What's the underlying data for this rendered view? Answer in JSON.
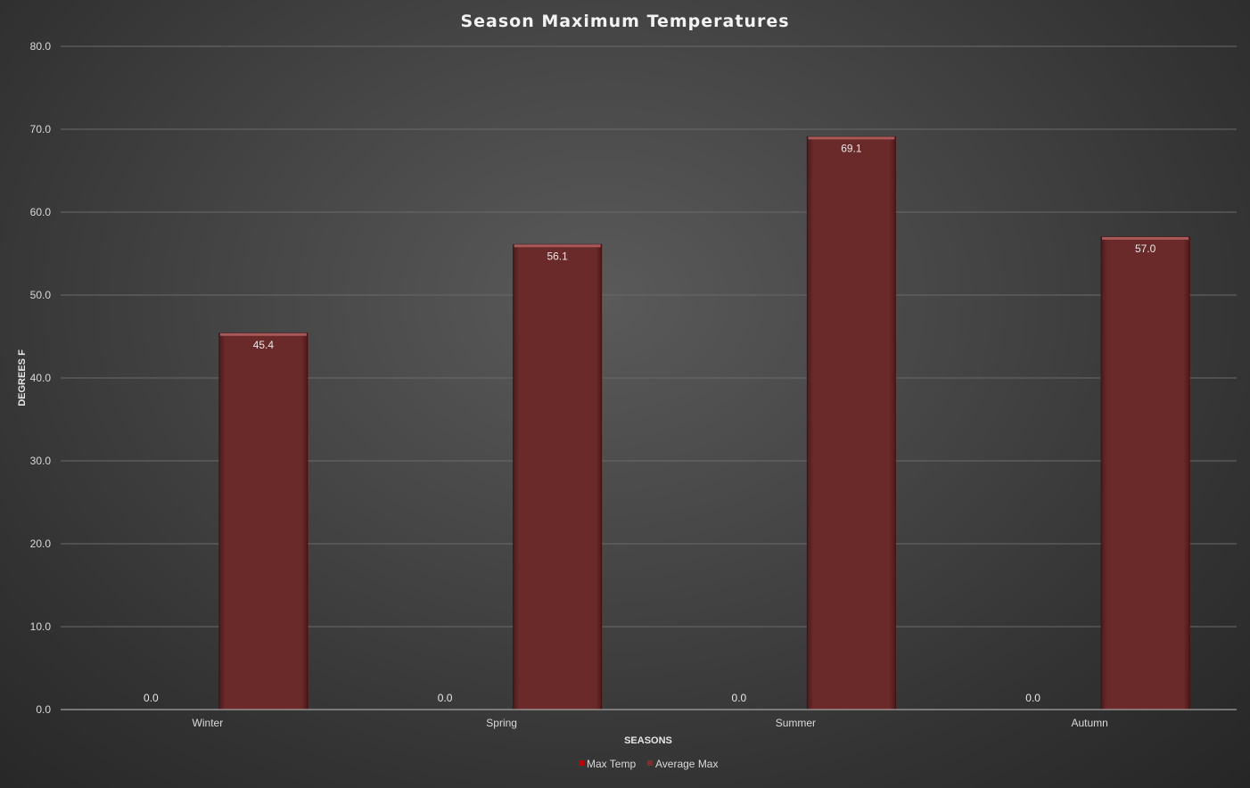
{
  "chart_data": {
    "type": "bar",
    "title": "Season Maximum Temperatures",
    "xlabel": "SEASONS",
    "ylabel": "DEGREES F",
    "categories": [
      "Winter",
      "Spring",
      "Summer",
      "Autumn"
    ],
    "series": [
      {
        "name": "Max Temp",
        "values": [
          0.0,
          0.0,
          0.0,
          0.0
        ],
        "labels": [
          "0.0",
          "0.0",
          "0.0",
          "0.0"
        ],
        "color": "#c00000"
      },
      {
        "name": "Average Max",
        "values": [
          45.4,
          56.1,
          69.1,
          57.0
        ],
        "labels": [
          "45.4",
          "56.1",
          "69.1",
          "57.0"
        ],
        "color": "#6b2a2a"
      }
    ],
    "ylim": [
      0,
      80
    ],
    "yticks": [
      "0.0",
      "10.0",
      "20.0",
      "30.0",
      "40.0",
      "50.0",
      "60.0",
      "70.0",
      "80.0"
    ],
    "grid": true,
    "legend": "bottom-center"
  }
}
